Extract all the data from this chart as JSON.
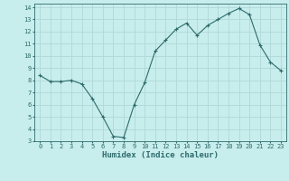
{
  "x": [
    0,
    1,
    2,
    3,
    4,
    5,
    6,
    7,
    8,
    9,
    10,
    11,
    12,
    13,
    14,
    15,
    16,
    17,
    18,
    19,
    20,
    21,
    22,
    23
  ],
  "y": [
    8.4,
    7.9,
    7.9,
    8.0,
    7.7,
    6.5,
    5.0,
    3.4,
    3.3,
    6.0,
    7.8,
    10.4,
    11.3,
    12.2,
    12.7,
    11.7,
    12.5,
    13.0,
    13.5,
    13.9,
    13.4,
    10.9,
    9.5,
    8.8
  ],
  "xlim": [
    -0.5,
    23.5
  ],
  "ylim": [
    3,
    14.3
  ],
  "yticks": [
    3,
    4,
    5,
    6,
    7,
    8,
    9,
    10,
    11,
    12,
    13,
    14
  ],
  "xticks": [
    0,
    1,
    2,
    3,
    4,
    5,
    6,
    7,
    8,
    9,
    10,
    11,
    12,
    13,
    14,
    15,
    16,
    17,
    18,
    19,
    20,
    21,
    22,
    23
  ],
  "xlabel": "Humidex (Indice chaleur)",
  "line_color": "#2e6b6b",
  "marker": "+",
  "marker_color": "#2e6b6b",
  "bg_color": "#c8eded",
  "grid_color": "#b0d8d8",
  "tick_label_color": "#2e6b6b",
  "axis_label_color": "#2e6b6b",
  "tick_fontsize": 5.0,
  "label_fontsize": 6.5
}
